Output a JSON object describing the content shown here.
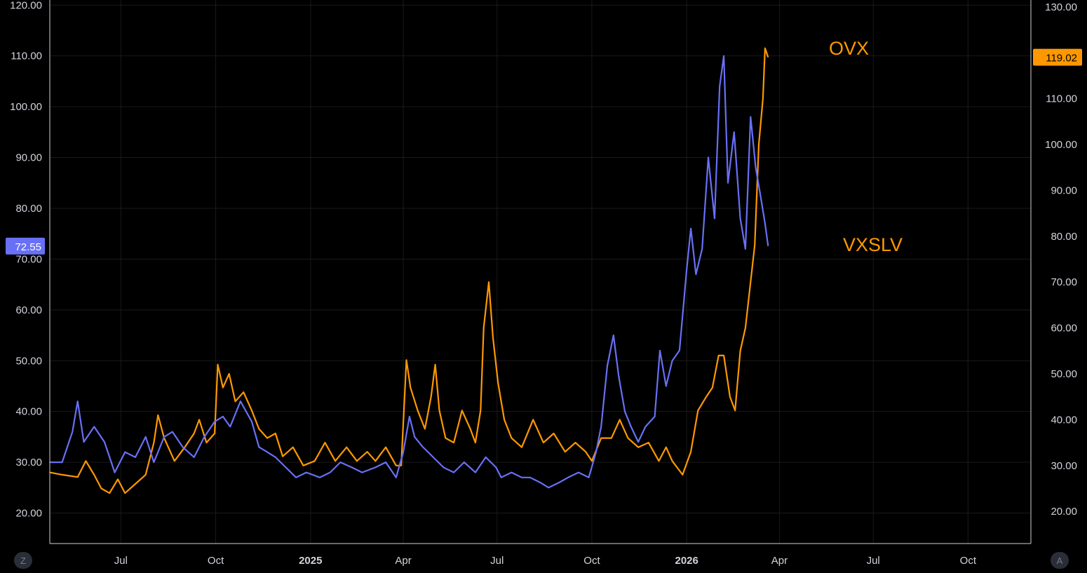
{
  "colors": {
    "background": "#000000",
    "grid": "#1a1a1a",
    "text": "#d1d4dc",
    "ovx": "#ff9800",
    "vxslv": "#6870f5",
    "axis_line": "#cfcfcf"
  },
  "corner_buttons": {
    "left": "Z",
    "right": "A"
  },
  "chart_data": {
    "type": "line",
    "title": "",
    "x_ticks": [
      {
        "label": "Jul",
        "date": "2024-07-01"
      },
      {
        "label": "Oct",
        "date": "2024-10-01"
      },
      {
        "label": "2025",
        "date": "2025-01-01",
        "bold": true
      },
      {
        "label": "Apr",
        "date": "2025-04-01"
      },
      {
        "label": "Jul",
        "date": "2025-07-01"
      },
      {
        "label": "Oct",
        "date": "2025-10-01"
      },
      {
        "label": "2026",
        "date": "2026-01-01",
        "bold": true
      },
      {
        "label": "Apr",
        "date": "2026-04-01"
      },
      {
        "label": "Jul",
        "date": "2026-07-01"
      },
      {
        "label": "Oct",
        "date": "2026-10-01"
      }
    ],
    "xlim": [
      "2024-04-23",
      "2026-12-01"
    ],
    "left_axis": {
      "ticks": [
        "120.00",
        "110.00",
        "100.00",
        "90.00",
        "80.00",
        "70.00",
        "60.00",
        "50.00",
        "40.00",
        "30.00",
        "20.00"
      ],
      "ylim": [
        14,
        121
      ],
      "last_value_label": "72.55"
    },
    "right_axis": {
      "ticks": [
        "130.00",
        "110.00",
        "100.00",
        "90.00",
        "80.00",
        "70.00",
        "60.00",
        "50.00",
        "40.00",
        "30.00",
        "20.00"
      ],
      "ylim": [
        13,
        131.5
      ],
      "last_value_label": "119.02"
    },
    "series": [
      {
        "name": "OVX",
        "axis": "right",
        "color": "#ff9800",
        "points": [
          [
            "2024-04-23",
            28.5
          ],
          [
            "2024-05-05",
            28
          ],
          [
            "2024-05-20",
            27.5
          ],
          [
            "2024-05-28",
            31
          ],
          [
            "2024-06-05",
            28
          ],
          [
            "2024-06-12",
            25
          ],
          [
            "2024-06-20",
            24
          ],
          [
            "2024-06-28",
            27
          ],
          [
            "2024-07-05",
            24
          ],
          [
            "2024-07-15",
            26
          ],
          [
            "2024-07-25",
            28
          ],
          [
            "2024-08-02",
            35
          ],
          [
            "2024-08-06",
            41
          ],
          [
            "2024-08-12",
            36
          ],
          [
            "2024-08-22",
            31
          ],
          [
            "2024-09-01",
            34
          ],
          [
            "2024-09-10",
            37
          ],
          [
            "2024-09-15",
            40
          ],
          [
            "2024-09-22",
            35
          ],
          [
            "2024-09-30",
            37
          ],
          [
            "2024-10-03",
            52
          ],
          [
            "2024-10-08",
            47
          ],
          [
            "2024-10-14",
            50
          ],
          [
            "2024-10-20",
            44
          ],
          [
            "2024-10-28",
            46
          ],
          [
            "2024-11-05",
            42
          ],
          [
            "2024-11-12",
            38
          ],
          [
            "2024-11-20",
            36
          ],
          [
            "2024-11-28",
            37
          ],
          [
            "2024-12-05",
            32
          ],
          [
            "2024-12-15",
            34
          ],
          [
            "2024-12-25",
            30
          ],
          [
            "2025-01-05",
            31
          ],
          [
            "2025-01-15",
            35
          ],
          [
            "2025-01-25",
            31
          ],
          [
            "2025-02-05",
            34
          ],
          [
            "2025-02-15",
            31
          ],
          [
            "2025-02-25",
            33
          ],
          [
            "2025-03-05",
            31
          ],
          [
            "2025-03-15",
            34
          ],
          [
            "2025-03-25",
            30
          ],
          [
            "2025-03-30",
            30
          ],
          [
            "2025-04-04",
            53
          ],
          [
            "2025-04-08",
            47
          ],
          [
            "2025-04-15",
            42
          ],
          [
            "2025-04-22",
            38
          ],
          [
            "2025-04-28",
            45
          ],
          [
            "2025-05-02",
            52
          ],
          [
            "2025-05-06",
            42
          ],
          [
            "2025-05-12",
            36
          ],
          [
            "2025-05-20",
            35
          ],
          [
            "2025-05-28",
            42
          ],
          [
            "2025-06-05",
            38
          ],
          [
            "2025-06-10",
            35
          ],
          [
            "2025-06-15",
            42
          ],
          [
            "2025-06-18",
            60
          ],
          [
            "2025-06-23",
            70
          ],
          [
            "2025-06-27",
            58
          ],
          [
            "2025-07-02",
            48
          ],
          [
            "2025-07-08",
            40
          ],
          [
            "2025-07-15",
            36
          ],
          [
            "2025-07-25",
            34
          ],
          [
            "2025-08-05",
            40
          ],
          [
            "2025-08-15",
            35
          ],
          [
            "2025-08-25",
            37
          ],
          [
            "2025-09-05",
            33
          ],
          [
            "2025-09-15",
            35
          ],
          [
            "2025-09-25",
            33
          ],
          [
            "2025-10-01",
            31
          ],
          [
            "2025-10-10",
            36
          ],
          [
            "2025-10-20",
            36
          ],
          [
            "2025-10-28",
            40
          ],
          [
            "2025-11-05",
            36
          ],
          [
            "2025-11-15",
            34
          ],
          [
            "2025-11-25",
            35
          ],
          [
            "2025-12-05",
            31
          ],
          [
            "2025-12-12",
            34
          ],
          [
            "2025-12-18",
            31
          ],
          [
            "2025-12-28",
            28
          ],
          [
            "2026-01-05",
            33
          ],
          [
            "2026-01-12",
            42
          ],
          [
            "2026-01-20",
            45
          ],
          [
            "2026-01-26",
            47
          ],
          [
            "2026-02-01",
            54
          ],
          [
            "2026-02-06",
            54
          ],
          [
            "2026-02-12",
            45
          ],
          [
            "2026-02-17",
            42
          ],
          [
            "2026-02-22",
            55
          ],
          [
            "2026-02-27",
            60
          ],
          [
            "2026-03-03",
            68
          ],
          [
            "2026-03-08",
            78
          ],
          [
            "2026-03-12",
            100
          ],
          [
            "2026-03-16",
            110
          ],
          [
            "2026-03-18",
            121
          ],
          [
            "2026-03-21",
            119.02
          ]
        ]
      },
      {
        "name": "VXSLV",
        "axis": "left",
        "color": "#6870f5",
        "points": [
          [
            "2024-04-23",
            30
          ],
          [
            "2024-05-05",
            30
          ],
          [
            "2024-05-15",
            36
          ],
          [
            "2024-05-20",
            42
          ],
          [
            "2024-05-26",
            34
          ],
          [
            "2024-06-05",
            37
          ],
          [
            "2024-06-15",
            34
          ],
          [
            "2024-06-25",
            28
          ],
          [
            "2024-07-05",
            32
          ],
          [
            "2024-07-15",
            31
          ],
          [
            "2024-07-25",
            35
          ],
          [
            "2024-08-02",
            30
          ],
          [
            "2024-08-12",
            35
          ],
          [
            "2024-08-20",
            36
          ],
          [
            "2024-08-30",
            33
          ],
          [
            "2024-09-10",
            31
          ],
          [
            "2024-09-20",
            35
          ],
          [
            "2024-09-30",
            38
          ],
          [
            "2024-10-08",
            39
          ],
          [
            "2024-10-15",
            37
          ],
          [
            "2024-10-25",
            42
          ],
          [
            "2024-11-05",
            38
          ],
          [
            "2024-11-12",
            33
          ],
          [
            "2024-11-20",
            32
          ],
          [
            "2024-11-28",
            31
          ],
          [
            "2024-12-08",
            29
          ],
          [
            "2024-12-18",
            27
          ],
          [
            "2024-12-28",
            28
          ],
          [
            "2025-01-10",
            27
          ],
          [
            "2025-01-20",
            28
          ],
          [
            "2025-01-30",
            30
          ],
          [
            "2025-02-10",
            29
          ],
          [
            "2025-02-20",
            28
          ],
          [
            "2025-03-05",
            29
          ],
          [
            "2025-03-15",
            30
          ],
          [
            "2025-03-25",
            27
          ],
          [
            "2025-04-01",
            32
          ],
          [
            "2025-04-07",
            39
          ],
          [
            "2025-04-12",
            35
          ],
          [
            "2025-04-20",
            33
          ],
          [
            "2025-04-30",
            31
          ],
          [
            "2025-05-10",
            29
          ],
          [
            "2025-05-20",
            28
          ],
          [
            "2025-05-30",
            30
          ],
          [
            "2025-06-10",
            28
          ],
          [
            "2025-06-20",
            31
          ],
          [
            "2025-06-30",
            29
          ],
          [
            "2025-07-05",
            27
          ],
          [
            "2025-07-15",
            28
          ],
          [
            "2025-07-25",
            27
          ],
          [
            "2025-08-02",
            27
          ],
          [
            "2025-08-12",
            26
          ],
          [
            "2025-08-20",
            25
          ],
          [
            "2025-08-30",
            26
          ],
          [
            "2025-09-08",
            27
          ],
          [
            "2025-09-18",
            28
          ],
          [
            "2025-09-28",
            27
          ],
          [
            "2025-10-05",
            32
          ],
          [
            "2025-10-10",
            37
          ],
          [
            "2025-10-16",
            49
          ],
          [
            "2025-10-22",
            55
          ],
          [
            "2025-10-27",
            47
          ],
          [
            "2025-11-02",
            40
          ],
          [
            "2025-11-08",
            37
          ],
          [
            "2025-11-15",
            34
          ],
          [
            "2025-11-22",
            37
          ],
          [
            "2025-12-01",
            39
          ],
          [
            "2025-12-06",
            52
          ],
          [
            "2025-12-12",
            45
          ],
          [
            "2025-12-18",
            50
          ],
          [
            "2025-12-25",
            52
          ],
          [
            "2026-01-01",
            68
          ],
          [
            "2026-01-05",
            76
          ],
          [
            "2026-01-10",
            67
          ],
          [
            "2026-01-16",
            72
          ],
          [
            "2026-01-22",
            90
          ],
          [
            "2026-01-28",
            78
          ],
          [
            "2026-02-02",
            104
          ],
          [
            "2026-02-06",
            110
          ],
          [
            "2026-02-10",
            85
          ],
          [
            "2026-02-16",
            95
          ],
          [
            "2026-02-22",
            78
          ],
          [
            "2026-02-27",
            72
          ],
          [
            "2026-03-04",
            98
          ],
          [
            "2026-03-09",
            88
          ],
          [
            "2026-03-14",
            82
          ],
          [
            "2026-03-18",
            77
          ],
          [
            "2026-03-21",
            72.55
          ]
        ]
      }
    ],
    "annotations": [
      {
        "text": "OVX",
        "color": "#ff9800",
        "date": "2026-05-10",
        "value": 69,
        "axis": "pixel"
      },
      {
        "text": "VXSLV",
        "color": "#ff9800",
        "date": "2026-05-20",
        "value": 349,
        "axis": "pixel"
      }
    ]
  }
}
